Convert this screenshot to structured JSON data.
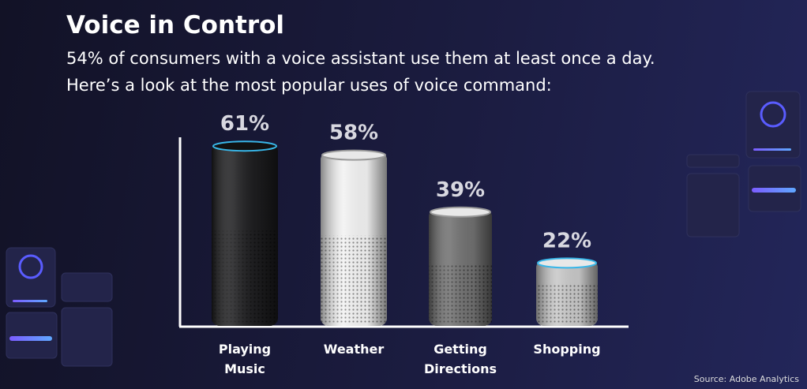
{
  "chart_data": {
    "type": "bar",
    "title": "Voice in Control",
    "subtitle": [
      "54% of consumers with a voice assistant use them at least once a day.",
      "Here’s a look at the most popular uses of voice command:"
    ],
    "categories": [
      "Playing Music",
      "Weather",
      "Getting Directions",
      "Shopping"
    ],
    "values": [
      61,
      58,
      39,
      22
    ],
    "value_labels": [
      "61%",
      "58%",
      "39%",
      "22%"
    ],
    "colors": [
      "#1c1c1e",
      "#f2f2f2",
      "#707070",
      "#c8c8c8"
    ],
    "source": "Source: Adobe Analytics"
  }
}
